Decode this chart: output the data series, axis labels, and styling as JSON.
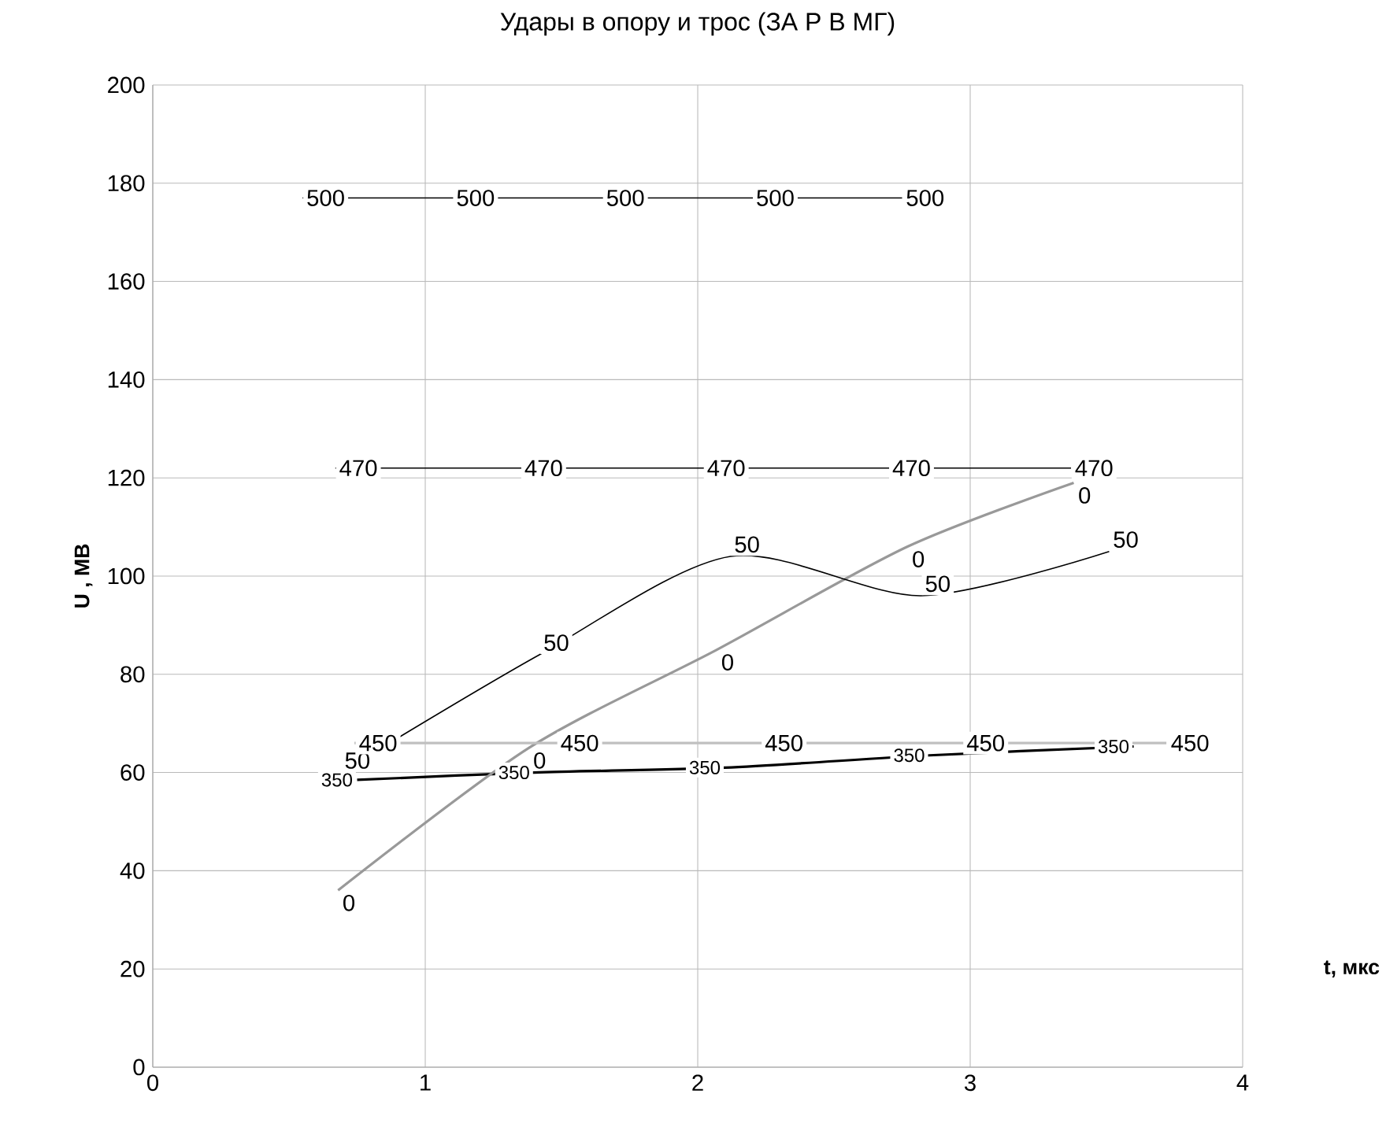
{
  "chart_data": {
    "type": "line",
    "title": "Удары в опору и трос  (ЗА Р В МГ)",
    "xlabel": "t, мкс",
    "ylabel": "U , МВ",
    "xlim": [
      0,
      4
    ],
    "xticks": [
      0,
      1,
      2,
      3,
      4
    ],
    "ylim": [
      0,
      200
    ],
    "yticks": [
      0,
      20,
      40,
      60,
      80,
      100,
      120,
      140,
      160,
      180,
      200
    ],
    "grid": true,
    "legend": false,
    "marker": "none",
    "series": [
      {
        "name": "500",
        "color": "#000000",
        "x": [
          0.55,
          1.1,
          1.65,
          2.2,
          2.75
        ],
        "values": [
          177,
          177,
          177,
          177,
          177
        ]
      },
      {
        "name": "470",
        "color": "#000000",
        "x": [
          0.67,
          1.35,
          2.02,
          2.7,
          3.37
        ],
        "values": [
          122,
          122,
          122,
          122,
          122
        ]
      },
      {
        "name": "50",
        "color": "#000000",
        "x": [
          0.69,
          1.42,
          2.12,
          2.82,
          3.51
        ],
        "values": [
          60,
          84,
          104,
          96,
          105
        ]
      },
      {
        "name": "0",
        "color": "#999999",
        "x": [
          0.68,
          1.38,
          2.07,
          2.77,
          3.38
        ],
        "values": [
          36,
          65,
          85,
          106,
          119
        ]
      },
      {
        "name": "450",
        "color": "#c0c0c0",
        "x": [
          0.74,
          1.48,
          2.23,
          2.97,
          3.72
        ],
        "values": [
          66,
          66,
          66,
          66,
          66
        ]
      },
      {
        "name": "350",
        "color": "#000000",
        "x": [
          0.75,
          1.4,
          2.1,
          2.85,
          3.6
        ],
        "values": [
          58.5,
          60,
          61,
          63.5,
          65.3
        ]
      }
    ]
  }
}
